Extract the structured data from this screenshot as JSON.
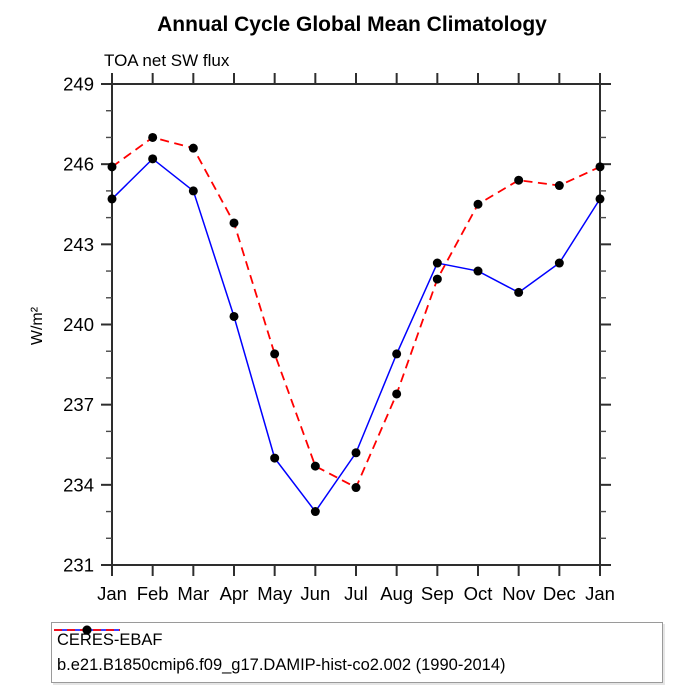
{
  "chart_data": {
    "type": "line",
    "title": "Annual Cycle Global Mean Climatology",
    "subtitle": "TOA net SW flux",
    "ylabel": "W/m²",
    "xlabel": "",
    "categories": [
      "Jan",
      "Feb",
      "Mar",
      "Apr",
      "May",
      "Jun",
      "Jul",
      "Aug",
      "Sep",
      "Oct",
      "Nov",
      "Dec",
      "Jan"
    ],
    "ylim": [
      231,
      249
    ],
    "yticks_major": [
      231,
      234,
      237,
      240,
      243,
      246,
      249
    ],
    "ytick_minor_step": 1,
    "grid": false,
    "legend_position": "bottom-left-box",
    "frame_color": "#2e2e2e",
    "series": [
      {
        "name": "CERES-EBAF",
        "color": "#0000ff",
        "line_style": "solid",
        "marker": "filled-circle",
        "marker_color": "#000000",
        "values": [
          244.7,
          246.2,
          245.0,
          240.3,
          235.0,
          233.0,
          235.2,
          238.9,
          242.3,
          242.0,
          241.2,
          242.3,
          244.7
        ]
      },
      {
        "name": "b.e21.B1850cmip6.f09_g17.DAMIP-hist-co2.002 (1990-2014)",
        "color": "#ff0000",
        "line_style": "dashed",
        "marker": "filled-circle",
        "marker_color": "#000000",
        "values": [
          245.9,
          247.0,
          246.6,
          243.8,
          238.9,
          234.7,
          233.9,
          237.4,
          241.7,
          244.5,
          245.4,
          245.2,
          245.9
        ]
      }
    ]
  }
}
